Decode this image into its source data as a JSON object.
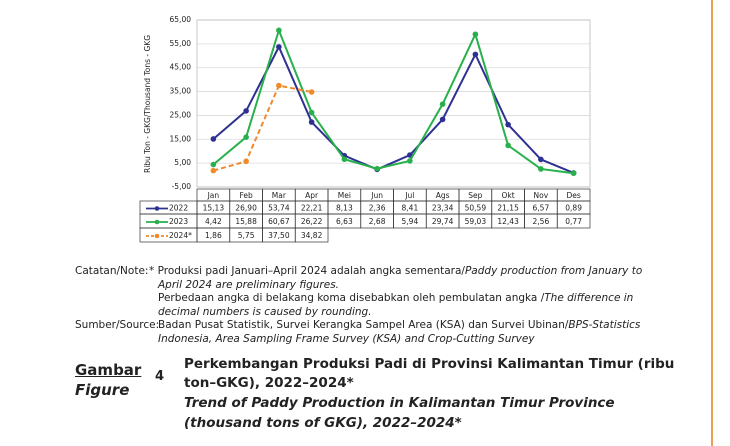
{
  "chart_data": {
    "type": "line",
    "y_axis_label": "Ribu Ton - GKG/Thousand Tons - GKG",
    "categories": [
      "Jan",
      "Feb",
      "Mar",
      "Apr",
      "Mei",
      "Jun",
      "Jul",
      "Ags",
      "Sep",
      "Okt",
      "Nov",
      "Des"
    ],
    "ylim": [
      -5,
      65
    ],
    "yticks": [
      {
        "value": -5,
        "label": "-5,00"
      },
      {
        "value": 5,
        "label": "5,00"
      },
      {
        "value": 15,
        "label": "15,00"
      },
      {
        "value": 25,
        "label": "25,00"
      },
      {
        "value": 35,
        "label": "35,00"
      },
      {
        "value": 45,
        "label": "45,00"
      },
      {
        "value": 55,
        "label": "55,00"
      },
      {
        "value": 65,
        "label": "65,00"
      }
    ],
    "grid": true,
    "series": [
      {
        "name": "2022",
        "color": "#2e3192",
        "dashed": false,
        "values": [
          15.13,
          26.9,
          53.74,
          22.21,
          8.13,
          2.36,
          8.41,
          23.34,
          50.59,
          21.15,
          6.57,
          0.89
        ],
        "value_labels": [
          "15,13",
          "26,90",
          "53,74",
          "22,21",
          "8,13",
          "2,36",
          "8,41",
          "23,34",
          "50,59",
          "21,15",
          "6,57",
          "0,89"
        ]
      },
      {
        "name": "2023",
        "color": "#27b04b",
        "dashed": false,
        "values": [
          4.42,
          15.88,
          60.67,
          26.22,
          6.63,
          2.68,
          5.94,
          29.74,
          59.03,
          12.43,
          2.56,
          0.77
        ],
        "value_labels": [
          "4,42",
          "15,88",
          "60,67",
          "26,22",
          "6,63",
          "2,68",
          "5,94",
          "29,74",
          "59,03",
          "12,43",
          "2,56",
          "0,77"
        ]
      },
      {
        "name": "2024*",
        "color": "#f08a2c",
        "dashed": true,
        "values": [
          1.86,
          5.75,
          37.5,
          34.82,
          null,
          null,
          null,
          null,
          null,
          null,
          null,
          null
        ],
        "value_labels": [
          "1,86",
          "5,75",
          "37,50",
          "34,82",
          null,
          null,
          null,
          null,
          null,
          null,
          null,
          null
        ]
      }
    ]
  },
  "notes": [
    {
      "label": "Catatan/Note:",
      "parts": [
        {
          "text": "* Produksi padi Januari–April 2024 adalah angka sementara/"
        },
        {
          "text": "Paddy production from January to",
          "italic": true
        }
      ]
    },
    {
      "parts": [
        {
          "text": "April 2024 are preliminary figures.",
          "italic": true
        }
      ]
    },
    {
      "parts": [
        {
          "text": "Perbedaan angka di belakang koma disebabkan oleh pembulatan angka /"
        },
        {
          "text": "The difference in",
          "italic": true
        }
      ]
    },
    {
      "parts": [
        {
          "text": "decimal numbers is caused by rounding.",
          "italic": true
        }
      ]
    },
    {
      "label": "Sumber/Source:",
      "parts": [
        {
          "text": "Badan Pusat Statistik, Survei Kerangka Sampel Area (KSA) dan Survei Ubinan/"
        },
        {
          "text": "BPS-Statistics",
          "italic": true
        }
      ]
    },
    {
      "parts": [
        {
          "text": "Indonesia, Area Sampling Frame Survey (KSA) and Crop-Cutting Survey",
          "italic": true
        }
      ]
    }
  ],
  "caption": {
    "label": "Gambar",
    "label_en": "Figure",
    "number": "4",
    "title": [
      "Perkembangan Produksi Padi di Provinsi Kalimantan Timur (ribu",
      "ton–GKG), 2022–2024*"
    ],
    "title_en": [
      "Trend of Paddy Production in Kalimantan Timur Province",
      "(thousand tons of GKG), 2022–2024*"
    ]
  }
}
